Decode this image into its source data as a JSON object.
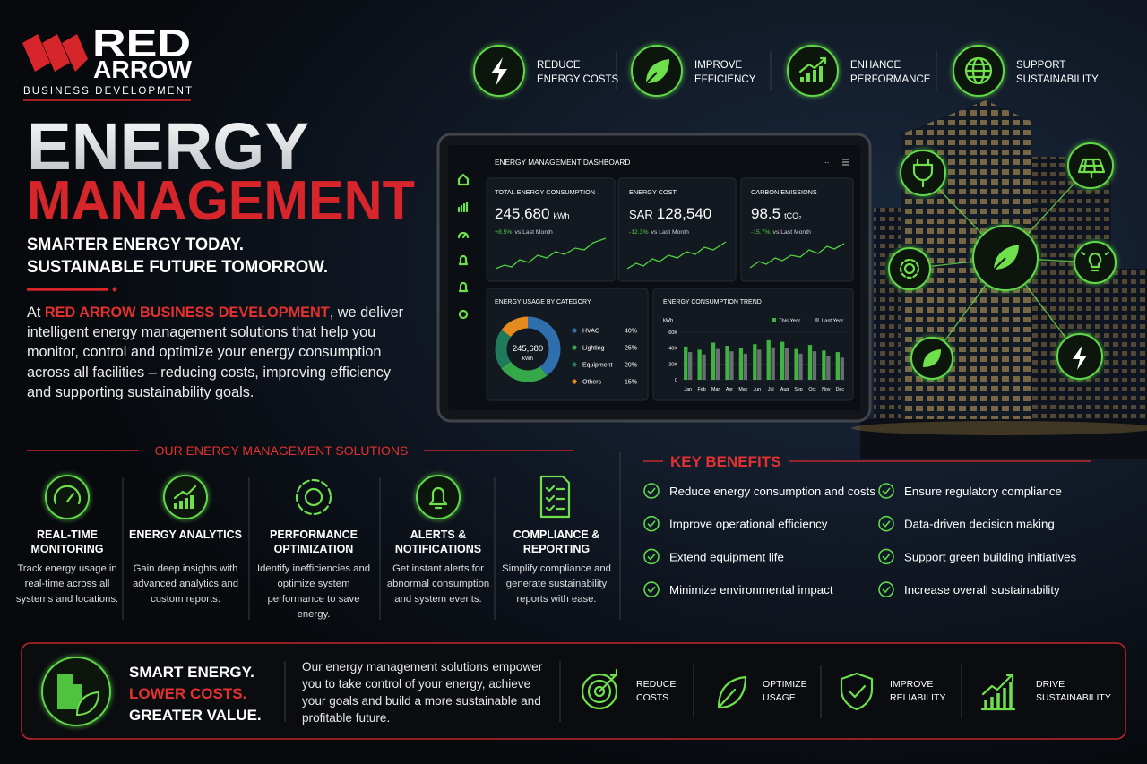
{
  "logo": {
    "line1": "RED",
    "line2": "ARROW",
    "tagline": "BUSINESS DEVELOPMENT"
  },
  "top_features": [
    {
      "line1": "REDUCE",
      "line2": "ENERGY COSTS"
    },
    {
      "line1": "IMPROVE",
      "line2": "EFFICIENCY"
    },
    {
      "line1": "ENHANCE",
      "line2": "PERFORMANCE"
    },
    {
      "line1": "SUPPORT",
      "line2": "SUSTAINABILITY"
    }
  ],
  "hero": {
    "title1": "ENERGY",
    "title2": "MANAGEMENT",
    "tagline1": "SMARTER ENERGY TODAY.",
    "tagline2": "SUSTAINABLE FUTURE TOMORROW.",
    "intro_prefix": "At ",
    "intro_company": "RED ARROW BUSINESS DEVELOPMENT",
    "intro_text": ", we deliver intelligent energy management solutions that help you monitor, control and optimize your energy consumption across all facilities – reducing costs, improving efficiency and supporting sustainability goals."
  },
  "dashboard": {
    "title": "ENERGY MANAGEMENT DASHBOARD",
    "kpis": [
      {
        "label": "TOTAL ENERGY CONSUMPTION",
        "value": "245,680",
        "unit": "kWh",
        "change": "+8.5%",
        "compare": "vs Last Month"
      },
      {
        "label": "ENERGY COST",
        "prefix": "SAR",
        "value": "128,540",
        "change": "-12.3%",
        "compare": "vs Last Month"
      },
      {
        "label": "CARBON EMISSIONS",
        "value": "98.5",
        "unit": "tCO₂",
        "change": "-15.7%",
        "compare": "vs Last Month"
      }
    ]
  },
  "chart_data": [
    {
      "type": "donut",
      "title": "ENERGY USAGE BY CATEGORY",
      "categories": [
        "HVAC",
        "Lighting",
        "Equipment",
        "Others"
      ],
      "values": [
        40,
        25,
        20,
        15
      ],
      "value_labels": [
        "40%",
        "25%",
        "20%",
        "15%"
      ],
      "colors": [
        "#2f6fae",
        "#35a84a",
        "#1e7a5a",
        "#e58a1f"
      ],
      "center_value": "245,680",
      "center_unit": "kWh"
    },
    {
      "type": "bar",
      "title": "ENERGY CONSUMPTION TREND",
      "y_label": "kWh",
      "categories": [
        "Jan",
        "Feb",
        "Mar",
        "Apr",
        "May",
        "Jun",
        "Jul",
        "Aug",
        "Sep",
        "Oct",
        "Nov",
        "Dec"
      ],
      "series": [
        {
          "name": "This Year",
          "color": "#3fb440",
          "values": [
            42000,
            38000,
            47000,
            43000,
            40000,
            45000,
            50000,
            48000,
            39000,
            44000,
            37000,
            35000
          ]
        },
        {
          "name": "Last Year",
          "color": "#6b6f75",
          "values": [
            35000,
            32000,
            39000,
            36000,
            33000,
            38000,
            41000,
            40000,
            33000,
            36000,
            30000,
            28000
          ]
        }
      ],
      "ylim": [
        0,
        60000
      ],
      "yticks": [
        0,
        {
          "value": 20000,
          "label": "20K"
        },
        {
          "value": 40000,
          "label": "40K"
        },
        {
          "value": 60000,
          "label": "60K"
        }
      ]
    }
  ],
  "solutions": {
    "heading": "OUR ENERGY MANAGEMENT SOLUTIONS",
    "items": [
      {
        "title": "REAL-TIME MONITORING",
        "text": "Track energy usage in real-time across all systems and locations."
      },
      {
        "title": "ENERGY ANALYTICS",
        "text": "Gain deep insights with advanced analytics and custom reports."
      },
      {
        "title": "PERFORMANCE OPTIMIZATION",
        "text": "Identify inefficiencies and optimize system performance to save energy."
      },
      {
        "title": "ALERTS & NOTIFICATIONS",
        "text": "Get instant alerts for abnormal consumption and system events."
      },
      {
        "title": "COMPLIANCE & REPORTING",
        "text": "Simplify compliance and generate sustainability reports with ease."
      }
    ]
  },
  "benefits": {
    "heading": "KEY BENEFITS",
    "items": [
      "Reduce energy consumption and costs",
      "Improve operational efficiency",
      "Extend equipment life",
      "Minimize environmental impact",
      "Ensure regulatory compliance",
      "Data-driven decision making",
      "Support green building initiatives",
      "Increase overall sustainability"
    ]
  },
  "footer": {
    "line1": "SMART ENERGY.",
    "line2": "LOWER COSTS.",
    "line3": "GREATER VALUE.",
    "text": "Our energy management solutions empower you to take control of your energy, achieve your goals and build a more sustainable and profitable future.",
    "items": [
      {
        "line1": "REDUCE",
        "line2": "COSTS"
      },
      {
        "line1": "OPTIMIZE",
        "line2": "USAGE"
      },
      {
        "line1": "IMPROVE",
        "line2": "RELIABILITY"
      },
      {
        "line1": "DRIVE",
        "line2": "SUSTAINABILITY"
      }
    ]
  }
}
